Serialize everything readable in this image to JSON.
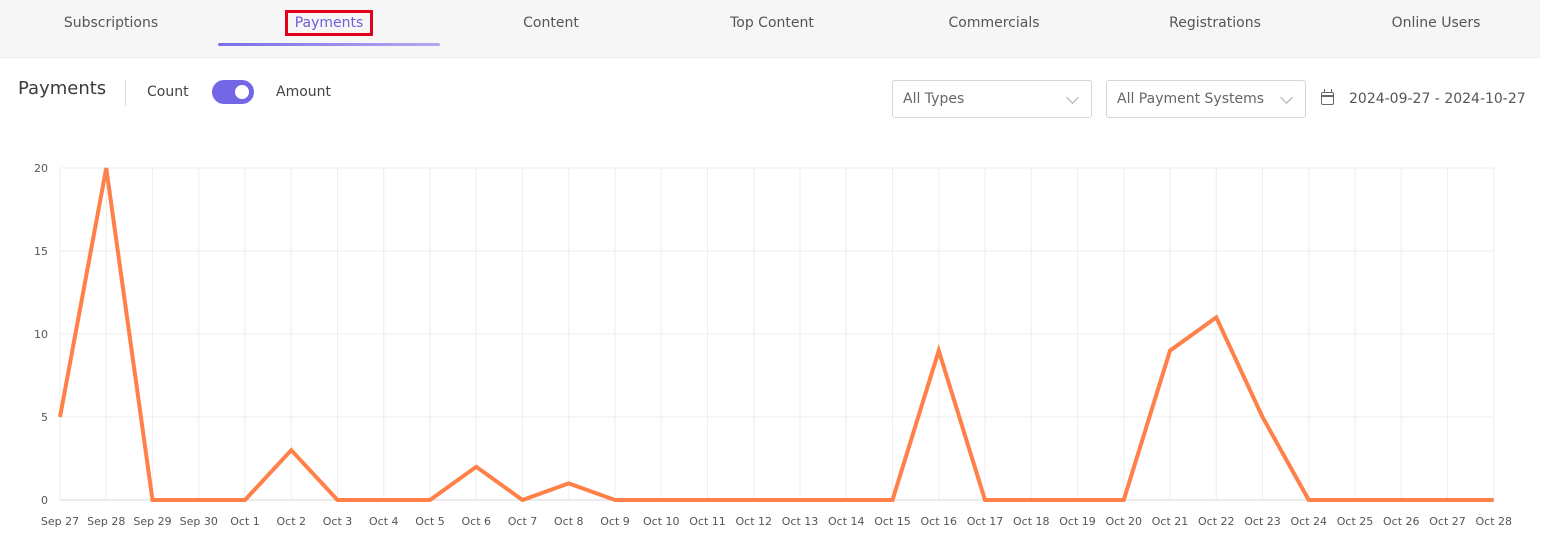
{
  "tabs": [
    {
      "label": "Subscriptions",
      "active": false
    },
    {
      "label": "Payments",
      "active": true
    },
    {
      "label": "Content",
      "active": false
    },
    {
      "label": "Top Content",
      "active": false
    },
    {
      "label": "Commercials",
      "active": false
    },
    {
      "label": "Registrations",
      "active": false
    },
    {
      "label": "Online Users",
      "active": false
    }
  ],
  "toolbar": {
    "title": "Payments",
    "count_label": "Count",
    "amount_label": "Amount",
    "toggle_on": true,
    "type_filter": "All Types",
    "system_filter": "All Payment Systems",
    "date_range": "2024-09-27 - 2024-10-27",
    "calendar_icon": "calendar-icon"
  },
  "colors": {
    "accent": "#7367e8",
    "line": "#ff8048",
    "highlight": "#e3001b"
  },
  "chart_data": {
    "type": "line",
    "categories": [
      "Sep 27",
      "Sep 28",
      "Sep 29",
      "Sep 30",
      "Oct 1",
      "Oct 2",
      "Oct 3",
      "Oct 4",
      "Oct 5",
      "Oct 6",
      "Oct 7",
      "Oct 8",
      "Oct 9",
      "Oct 10",
      "Oct 11",
      "Oct 12",
      "Oct 13",
      "Oct 14",
      "Oct 15",
      "Oct 16",
      "Oct 17",
      "Oct 18",
      "Oct 19",
      "Oct 20",
      "Oct 21",
      "Oct 22",
      "Oct 23",
      "Oct 24",
      "Oct 25",
      "Oct 26",
      "Oct 27",
      "Oct 28"
    ],
    "values": [
      5,
      20,
      0,
      0,
      0,
      3,
      0,
      0,
      0,
      2,
      0,
      1,
      0,
      0,
      0,
      0,
      0,
      0,
      0,
      9,
      0,
      0,
      0,
      0,
      9,
      11,
      5,
      0,
      0,
      0,
      0,
      0
    ],
    "yticks": [
      0,
      5,
      10,
      15,
      20
    ],
    "ylim": [
      0,
      20
    ],
    "grid": true,
    "legend": "none"
  }
}
